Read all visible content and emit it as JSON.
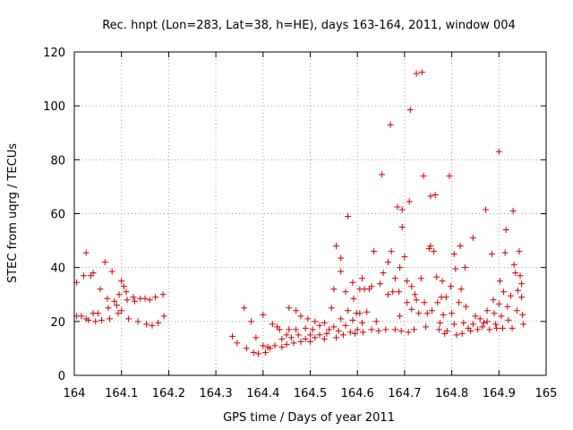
{
  "chart_data": {
    "type": "scatter",
    "title": "Rec. hnpt (Lon=283, Lat=38, h=HE), days 163-164, 2011, window 004",
    "xlabel": "GPS time / Days of year 2011",
    "ylabel": "STEC from uqrg / TECUs",
    "xlim": [
      164,
      165
    ],
    "ylim": [
      0,
      120
    ],
    "x_ticks": [
      164,
      164.1,
      164.2,
      164.3,
      164.4,
      164.5,
      164.6,
      164.7,
      164.8,
      164.9,
      165
    ],
    "x_tick_labels": [
      "164",
      "164.1",
      "164.2",
      "164.3",
      "164.4",
      "164.5",
      "164.6",
      "164.7",
      "164.8",
      "164.9",
      "165"
    ],
    "y_ticks": [
      0,
      20,
      40,
      60,
      80,
      100,
      120
    ],
    "y_tick_labels": [
      "0",
      "20",
      "40",
      "60",
      "80",
      "100",
      "120"
    ],
    "grid": true,
    "marker": "+",
    "color": "#cc0000",
    "series": [
      {
        "points": [
          [
            164.005,
            34.5
          ],
          [
            164.005,
            22
          ],
          [
            164.015,
            22
          ],
          [
            164.02,
            37
          ],
          [
            164.025,
            45.5
          ],
          [
            164.025,
            21
          ],
          [
            164.03,
            20.5
          ],
          [
            164.035,
            37
          ],
          [
            164.04,
            38
          ],
          [
            164.04,
            23
          ],
          [
            164.045,
            20
          ],
          [
            164.05,
            23
          ],
          [
            164.055,
            32
          ],
          [
            164.058,
            20.5
          ],
          [
            164.065,
            42
          ],
          [
            164.07,
            28.5
          ],
          [
            164.072,
            25
          ],
          [
            164.075,
            21
          ],
          [
            164.08,
            38.5
          ],
          [
            164.085,
            27.5
          ],
          [
            164.09,
            26
          ],
          [
            164.093,
            23
          ],
          [
            164.095,
            30
          ],
          [
            164.1,
            35
          ],
          [
            164.1,
            24
          ],
          [
            164.105,
            33
          ],
          [
            164.11,
            31
          ],
          [
            164.112,
            28
          ],
          [
            164.115,
            21
          ],
          [
            164.125,
            29
          ],
          [
            164.128,
            27.5
          ],
          [
            164.135,
            20
          ],
          [
            164.14,
            28.5
          ],
          [
            164.15,
            28.5
          ],
          [
            164.153,
            19
          ],
          [
            164.16,
            28
          ],
          [
            164.165,
            18.5
          ],
          [
            164.172,
            29
          ],
          [
            164.178,
            19.5
          ],
          [
            164.188,
            30
          ],
          [
            164.19,
            22
          ],
          [
            164.335,
            14.5
          ],
          [
            164.345,
            12
          ],
          [
            164.36,
            25
          ],
          [
            164.365,
            10
          ],
          [
            164.375,
            20
          ],
          [
            164.38,
            8.5
          ],
          [
            164.385,
            14
          ],
          [
            164.39,
            8
          ],
          [
            164.4,
            11
          ],
          [
            164.4,
            22.5
          ],
          [
            164.405,
            8.5
          ],
          [
            164.41,
            10.5
          ],
          [
            164.415,
            10
          ],
          [
            164.42,
            19
          ],
          [
            164.425,
            11
          ],
          [
            164.43,
            18
          ],
          [
            164.435,
            17
          ],
          [
            164.44,
            13.5
          ],
          [
            164.44,
            10.5
          ],
          [
            164.45,
            15
          ],
          [
            164.45,
            11.5
          ],
          [
            164.455,
            17
          ],
          [
            164.455,
            25
          ],
          [
            164.46,
            14
          ],
          [
            164.465,
            12
          ],
          [
            164.47,
            24
          ],
          [
            164.47,
            17
          ],
          [
            164.475,
            15
          ],
          [
            164.48,
            12.5
          ],
          [
            164.48,
            22
          ],
          [
            164.49,
            17.5
          ],
          [
            164.49,
            13.5
          ],
          [
            164.495,
            21
          ],
          [
            164.5,
            15
          ],
          [
            164.5,
            12.5
          ],
          [
            164.505,
            17
          ],
          [
            164.51,
            20
          ],
          [
            164.51,
            14
          ],
          [
            164.52,
            18.5
          ],
          [
            164.52,
            15
          ],
          [
            164.53,
            19.5
          ],
          [
            164.53,
            13.5
          ],
          [
            164.535,
            15.5
          ],
          [
            164.54,
            17
          ],
          [
            164.545,
            25
          ],
          [
            164.55,
            32
          ],
          [
            164.55,
            18
          ],
          [
            164.555,
            48
          ],
          [
            164.555,
            14
          ],
          [
            164.56,
            16.5
          ],
          [
            164.565,
            38.5
          ],
          [
            164.565,
            21
          ],
          [
            164.565,
            43.5
          ],
          [
            164.57,
            15
          ],
          [
            164.575,
            31
          ],
          [
            164.575,
            18.5
          ],
          [
            164.58,
            59
          ],
          [
            164.58,
            24
          ],
          [
            164.585,
            16
          ],
          [
            164.59,
            34.5
          ],
          [
            164.59,
            20.5
          ],
          [
            164.592,
            28.5
          ],
          [
            164.595,
            15.5
          ],
          [
            164.598,
            23
          ],
          [
            164.6,
            17
          ],
          [
            164.605,
            32
          ],
          [
            164.605,
            23
          ],
          [
            164.61,
            36
          ],
          [
            164.61,
            19.5
          ],
          [
            164.612,
            16
          ],
          [
            164.615,
            32
          ],
          [
            164.62,
            23.5
          ],
          [
            164.625,
            32
          ],
          [
            164.63,
            17
          ],
          [
            164.63,
            33
          ],
          [
            164.635,
            46
          ],
          [
            164.64,
            20
          ],
          [
            164.645,
            16.5
          ],
          [
            164.648,
            34
          ],
          [
            164.652,
            74.5
          ],
          [
            164.655,
            38
          ],
          [
            164.66,
            17
          ],
          [
            164.665,
            30
          ],
          [
            164.665,
            42
          ],
          [
            164.67,
            93
          ],
          [
            164.672,
            46
          ],
          [
            164.675,
            31
          ],
          [
            164.68,
            17
          ],
          [
            164.68,
            36
          ],
          [
            164.685,
            62.5
          ],
          [
            164.688,
            31
          ],
          [
            164.69,
            22
          ],
          [
            164.69,
            40
          ],
          [
            164.693,
            16.5
          ],
          [
            164.695,
            61.5
          ],
          [
            164.695,
            55
          ],
          [
            164.7,
            44
          ],
          [
            164.705,
            27
          ],
          [
            164.705,
            35
          ],
          [
            164.708,
            16
          ],
          [
            164.71,
            64.5
          ],
          [
            164.712,
            98.5
          ],
          [
            164.715,
            33
          ],
          [
            164.715,
            24.5
          ],
          [
            164.72,
            17
          ],
          [
            164.722,
            30
          ],
          [
            164.725,
            28
          ],
          [
            164.725,
            112
          ],
          [
            164.73,
            23
          ],
          [
            164.735,
            36
          ],
          [
            164.737,
            112.5
          ],
          [
            164.74,
            74
          ],
          [
            164.742,
            27
          ],
          [
            164.745,
            18
          ],
          [
            164.748,
            23
          ],
          [
            164.752,
            47
          ],
          [
            164.755,
            66.5
          ],
          [
            164.755,
            48
          ],
          [
            164.758,
            24
          ],
          [
            164.762,
            46
          ],
          [
            164.765,
            67
          ],
          [
            164.768,
            36.5
          ],
          [
            164.77,
            27
          ],
          [
            164.773,
            17
          ],
          [
            164.775,
            19.5
          ],
          [
            164.778,
            29
          ],
          [
            164.78,
            35
          ],
          [
            164.782,
            22.5
          ],
          [
            164.785,
            15.5
          ],
          [
            164.788,
            29
          ],
          [
            164.79,
            16.5
          ],
          [
            164.795,
            74
          ],
          [
            164.798,
            33
          ],
          [
            164.8,
            23
          ],
          [
            164.805,
            45
          ],
          [
            164.805,
            19
          ],
          [
            164.808,
            39.5
          ],
          [
            164.81,
            15
          ],
          [
            164.815,
            27
          ],
          [
            164.818,
            48
          ],
          [
            164.82,
            32
          ],
          [
            164.822,
            15.5
          ],
          [
            164.825,
            19.5
          ],
          [
            164.828,
            40
          ],
          [
            164.83,
            25.5
          ],
          [
            164.835,
            17.5
          ],
          [
            164.84,
            16.5
          ],
          [
            164.845,
            51
          ],
          [
            164.845,
            19
          ],
          [
            164.85,
            22
          ],
          [
            164.855,
            17
          ],
          [
            164.86,
            21
          ],
          [
            164.865,
            18
          ],
          [
            164.868,
            19.5
          ],
          [
            164.872,
            61.5
          ],
          [
            164.875,
            20
          ],
          [
            164.875,
            24
          ],
          [
            164.88,
            17
          ],
          [
            164.885,
            45
          ],
          [
            164.888,
            28
          ],
          [
            164.89,
            23
          ],
          [
            164.893,
            19
          ],
          [
            164.895,
            17.5
          ],
          [
            164.9,
            83
          ],
          [
            164.9,
            26.5
          ],
          [
            164.902,
            35
          ],
          [
            164.905,
            22
          ],
          [
            164.908,
            17.5
          ],
          [
            164.91,
            31
          ],
          [
            164.913,
            45.5
          ],
          [
            164.915,
            54
          ],
          [
            164.918,
            25.5
          ],
          [
            164.92,
            20.5
          ],
          [
            164.925,
            29.5
          ],
          [
            164.928,
            17.5
          ],
          [
            164.93,
            61
          ],
          [
            164.932,
            41
          ],
          [
            164.935,
            38
          ],
          [
            164.938,
            24
          ],
          [
            164.94,
            31.5
          ],
          [
            164.943,
            46
          ],
          [
            164.945,
            37
          ],
          [
            164.948,
            34
          ],
          [
            164.948,
            29
          ],
          [
            164.95,
            22.5
          ],
          [
            164.952,
            19
          ]
        ]
      }
    ]
  }
}
